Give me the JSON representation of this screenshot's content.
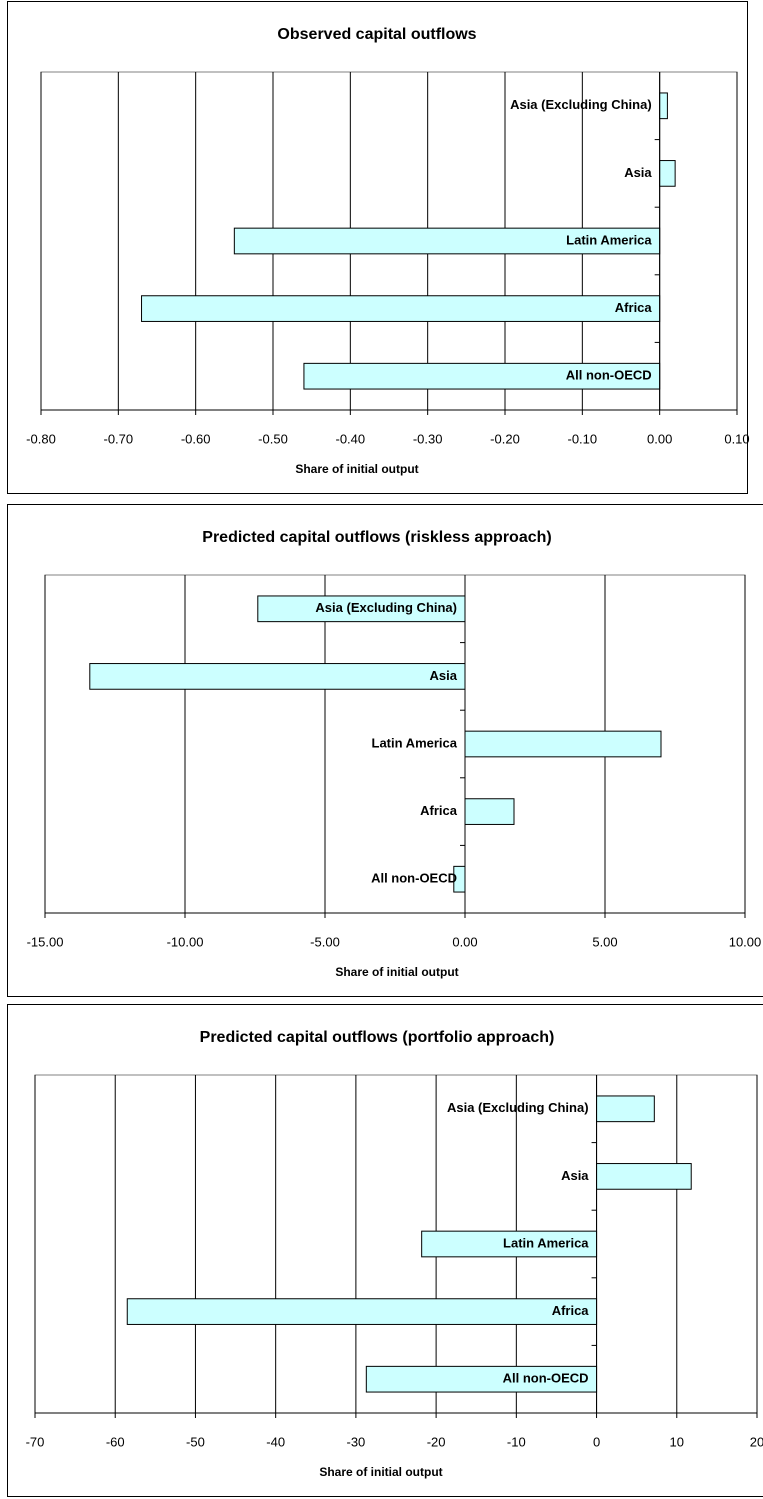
{
  "chart_data": [
    {
      "type": "bar",
      "orientation": "horizontal",
      "title": "Observed capital outflows",
      "x_label": "Share of initial output",
      "categories": [
        "Asia (Excluding China)",
        "Asia",
        "Latin America",
        "Africa",
        "All non-OECD"
      ],
      "values": [
        0.01,
        0.02,
        -0.55,
        -0.67,
        -0.46
      ],
      "color": "#ccffff",
      "xlim": [
        -0.8,
        0.1
      ],
      "xticks": [
        {
          "value": -0.8,
          "label": "-0.80"
        },
        {
          "value": -0.7,
          "label": "-0.70"
        },
        {
          "value": -0.6,
          "label": "-0.60"
        },
        {
          "value": -0.5,
          "label": "-0.50"
        },
        {
          "value": -0.4,
          "label": "-0.40"
        },
        {
          "value": -0.3,
          "label": "-0.30"
        },
        {
          "value": -0.2,
          "label": "-0.20"
        },
        {
          "value": -0.1,
          "label": "-0.10"
        },
        {
          "value": 0,
          "label": "0.00"
        },
        {
          "value": 0.1,
          "label": "0.10"
        }
      ],
      "grid": true
    },
    {
      "type": "bar",
      "orientation": "horizontal",
      "title": "Predicted capital outflows (riskless approach)",
      "x_label": "Share of initial output",
      "categories": [
        "Asia (Excluding China)",
        "Asia",
        "Latin America",
        "Africa",
        "All non-OECD"
      ],
      "values": [
        -7.4,
        -13.4,
        7.0,
        1.75,
        -0.4
      ],
      "color": "#ccffff",
      "xlim": [
        -15,
        10
      ],
      "xticks": [
        {
          "value": -15,
          "label": "-15.00"
        },
        {
          "value": -10,
          "label": "-10.00"
        },
        {
          "value": -5,
          "label": "-5.00"
        },
        {
          "value": 0,
          "label": "0.00"
        },
        {
          "value": 5,
          "label": "5.00"
        },
        {
          "value": 10,
          "label": "10.00"
        }
      ],
      "grid": true
    },
    {
      "type": "bar",
      "orientation": "horizontal",
      "title": "Predicted capital outflows (portfolio approach)",
      "x_label": "Share of initial output",
      "categories": [
        "Asia (Excluding China)",
        "Asia",
        "Latin America",
        "Africa",
        "All non-OECD"
      ],
      "values": [
        7.2,
        11.8,
        -21.8,
        -58.5,
        -28.7
      ],
      "color": "#ccffff",
      "xlim": [
        -70,
        20
      ],
      "xticks": [
        -70,
        -60,
        -50,
        -40,
        -30,
        -20,
        -10,
        0,
        10,
        20
      ],
      "grid": true
    }
  ]
}
